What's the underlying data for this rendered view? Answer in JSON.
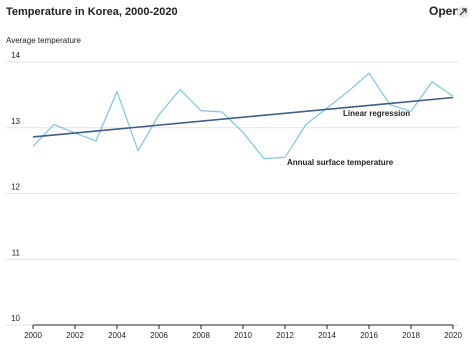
{
  "header": {
    "button": "Open"
  },
  "chart_data": {
    "type": "line",
    "title": "Temperature in Korea, 2000-2020",
    "ylabel": "Average temperature",
    "x": [
      2000,
      2001,
      2002,
      2003,
      2004,
      2005,
      2006,
      2007,
      2008,
      2009,
      2010,
      2011,
      2012,
      2013,
      2014,
      2015,
      2016,
      2017,
      2018,
      2019,
      2020
    ],
    "series": [
      {
        "name": "Annual surface temperature",
        "color": "#7cc6e4",
        "values": [
          12.72,
          13.05,
          12.92,
          12.8,
          13.55,
          12.65,
          13.2,
          13.58,
          13.26,
          13.24,
          12.93,
          12.53,
          12.55,
          13.05,
          13.3,
          13.55,
          13.83,
          13.35,
          13.25,
          13.7,
          13.48
        ]
      },
      {
        "name": "Linear regression",
        "color": "#3f5f86",
        "x": [
          2000,
          2020
        ],
        "values": [
          12.86,
          13.46
        ]
      }
    ],
    "xlim": [
      2000,
      2020
    ],
    "xticks": [
      2000,
      2002,
      2004,
      2006,
      2008,
      2010,
      2012,
      2014,
      2016,
      2018,
      2020
    ],
    "ylim": [
      10,
      14
    ],
    "yticks": [
      10,
      11,
      12,
      13,
      14
    ],
    "grid": true
  }
}
